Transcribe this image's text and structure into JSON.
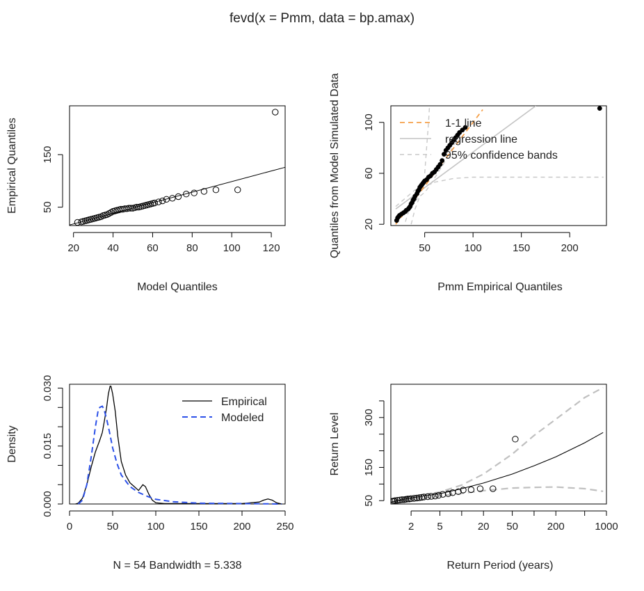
{
  "title": "fevd(x = Pmm, data = bp.amax)",
  "chart_data": [
    {
      "type": "scatter",
      "id": "qq-model",
      "xlabel": "Model Quantiles",
      "ylabel": "Empirical Quantiles",
      "xlim": [
        18,
        127
      ],
      "ylim": [
        15,
        243
      ],
      "xticks": [
        20,
        40,
        60,
        80,
        100,
        120
      ],
      "yticks": [
        50,
        150
      ],
      "points": [
        [
          22,
          21
        ],
        [
          24,
          22
        ],
        [
          25,
          23
        ],
        [
          26,
          24
        ],
        [
          27,
          25
        ],
        [
          28,
          26
        ],
        [
          29,
          27
        ],
        [
          30,
          28
        ],
        [
          31,
          29
        ],
        [
          32,
          30
        ],
        [
          33,
          31
        ],
        [
          34,
          32
        ],
        [
          35,
          34
        ],
        [
          36,
          35
        ],
        [
          37,
          36
        ],
        [
          38,
          38
        ],
        [
          39,
          40
        ],
        [
          40,
          42
        ],
        [
          41,
          43
        ],
        [
          42,
          44
        ],
        [
          43,
          45
        ],
        [
          44,
          46
        ],
        [
          45,
          46
        ],
        [
          46,
          47
        ],
        [
          47,
          47
        ],
        [
          48,
          48
        ],
        [
          49,
          48
        ],
        [
          50,
          48
        ],
        [
          51,
          49
        ],
        [
          52,
          50
        ],
        [
          53,
          50
        ],
        [
          54,
          51
        ],
        [
          55,
          52
        ],
        [
          56,
          53
        ],
        [
          57,
          54
        ],
        [
          58,
          55
        ],
        [
          59,
          56
        ],
        [
          60,
          57
        ],
        [
          61,
          58
        ],
        [
          63,
          60
        ],
        [
          65,
          62
        ],
        [
          67,
          65
        ],
        [
          70,
          67
        ],
        [
          73,
          70
        ],
        [
          77,
          75
        ],
        [
          81,
          77
        ],
        [
          86,
          80
        ],
        [
          92,
          83
        ],
        [
          103,
          83
        ],
        [
          122,
          231
        ]
      ],
      "line": {
        "x": [
          18,
          127
        ],
        "y": [
          16,
          126
        ]
      }
    },
    {
      "type": "scatter",
      "id": "qq-simulated",
      "xlabel": "Pmm Empirical Quantiles",
      "ylabel": "Quantiles from Model Simulated Data",
      "xlim": [
        15,
        238
      ],
      "ylim": [
        19,
        113
      ],
      "xticks": [
        50,
        100,
        150,
        200
      ],
      "yticks": [
        20,
        60,
        100
      ],
      "legend": {
        "position": "top-left",
        "entries": [
          "1-1 line",
          "regression line",
          "95% confidence bands"
        ]
      },
      "points": [
        [
          21,
          23
        ],
        [
          22,
          25
        ],
        [
          23,
          26
        ],
        [
          24,
          27
        ],
        [
          26,
          28
        ],
        [
          28,
          29
        ],
        [
          30,
          30
        ],
        [
          31,
          31
        ],
        [
          33,
          32
        ],
        [
          34,
          33
        ],
        [
          35,
          34
        ],
        [
          36,
          36
        ],
        [
          37,
          37
        ],
        [
          38,
          39
        ],
        [
          39,
          40
        ],
        [
          40,
          42
        ],
        [
          42,
          44
        ],
        [
          43,
          46
        ],
        [
          44,
          47
        ],
        [
          45,
          49
        ],
        [
          46,
          50
        ],
        [
          47,
          51
        ],
        [
          48,
          52
        ],
        [
          49,
          53
        ],
        [
          50,
          54
        ],
        [
          52,
          55
        ],
        [
          54,
          57
        ],
        [
          56,
          58
        ],
        [
          58,
          60
        ],
        [
          60,
          61
        ],
        [
          62,
          63
        ],
        [
          64,
          65
        ],
        [
          66,
          67
        ],
        [
          68,
          70
        ],
        [
          70,
          75
        ],
        [
          72,
          78
        ],
        [
          74,
          80
        ],
        [
          76,
          82
        ],
        [
          78,
          84
        ],
        [
          80,
          86
        ],
        [
          82,
          88
        ],
        [
          84,
          90
        ],
        [
          86,
          92
        ],
        [
          89,
          94
        ],
        [
          92,
          96
        ],
        [
          231,
          111
        ]
      ],
      "one_to_one": {
        "x": [
          20,
          110
        ],
        "y": [
          20,
          110
        ]
      },
      "regression": {
        "x": [
          20,
          165
        ],
        "y": [
          32,
          113
        ]
      },
      "conf_upper": {
        "x": [
          30,
          35,
          40,
          45,
          50,
          55,
          60,
          70,
          80,
          90
        ],
        "y": [
          22,
          34,
          38,
          42,
          45,
          50,
          56,
          68,
          82,
          95
        ]
      },
      "conf_lower": {
        "x": [
          20,
          40,
          60,
          80,
          100,
          120,
          150,
          200,
          235
        ],
        "y": [
          34,
          47,
          53,
          56,
          57,
          57,
          57,
          57,
          57
        ]
      },
      "conf_steep": {
        "x": [
          50,
          52,
          54,
          55
        ],
        "y": [
          60,
          80,
          100,
          113
        ]
      },
      "conf_left": {
        "x": [
          36,
          40,
          45
        ],
        "y": [
          20,
          32,
          42
        ]
      }
    },
    {
      "type": "line",
      "id": "density",
      "xlabel": "N = 54   Bandwidth = 5.338",
      "ylabel": "Density",
      "xlim": [
        0,
        250
      ],
      "ylim": [
        0,
        0.031
      ],
      "xticks": [
        0,
        50,
        100,
        150,
        200,
        250
      ],
      "yticks": [
        0.0,
        0.015,
        0.03
      ],
      "ytick_labels": [
        "0.000",
        "0.015",
        "0.030"
      ],
      "extra_yticks": [
        0.005,
        0.01,
        0.02,
        0.025
      ],
      "legend": {
        "position": "top-right",
        "entries": [
          "Empirical",
          "Modeled"
        ]
      },
      "series": [
        {
          "name": "Empirical",
          "color": "#000000",
          "x": [
            7,
            10,
            15,
            20,
            25,
            30,
            35,
            38,
            40,
            43,
            45,
            47,
            48,
            50,
            53,
            56,
            60,
            65,
            70,
            75,
            80,
            85,
            88,
            92,
            96,
            100,
            110,
            130,
            160,
            200,
            220,
            225,
            230,
            235,
            240,
            246
          ],
          "y": [
            0.0,
            0.0002,
            0.0015,
            0.005,
            0.0095,
            0.0135,
            0.0165,
            0.0185,
            0.021,
            0.025,
            0.0285,
            0.0305,
            0.0305,
            0.0285,
            0.024,
            0.0175,
            0.011,
            0.0075,
            0.0055,
            0.0045,
            0.0035,
            0.005,
            0.0045,
            0.0025,
            0.001,
            0.0003,
            0.0001,
            0.0001,
            0.0001,
            0.0001,
            0.0005,
            0.001,
            0.0013,
            0.001,
            0.0003,
            0.0
          ]
        },
        {
          "name": "Modeled",
          "color": "#2b50e8",
          "x": [
            10,
            15,
            20,
            25,
            30,
            33,
            35,
            38,
            40,
            43,
            46,
            50,
            55,
            60,
            70,
            80,
            90,
            100,
            120,
            150,
            200,
            246
          ],
          "y": [
            0.0,
            0.001,
            0.005,
            0.012,
            0.02,
            0.024,
            0.025,
            0.0253,
            0.0245,
            0.022,
            0.019,
            0.0145,
            0.0105,
            0.0075,
            0.0045,
            0.003,
            0.002,
            0.0012,
            0.0006,
            0.0002,
            0.0001,
            0.0
          ]
        }
      ]
    },
    {
      "type": "line",
      "id": "return-level",
      "xlabel": "Return Period (years)",
      "ylabel": "Return Level",
      "xscale": "log",
      "xlim": [
        1.05,
        1000
      ],
      "ylim": [
        40,
        400
      ],
      "xticks": [
        2,
        5,
        20,
        50,
        200,
        1000
      ],
      "extra_xticks": [
        10,
        100,
        500
      ],
      "yticks": [
        50,
        150,
        300
      ],
      "extra_yticks": [
        100,
        200,
        250,
        350
      ],
      "points": [
        [
          1.1,
          48
        ],
        [
          1.15,
          49
        ],
        [
          1.2,
          50
        ],
        [
          1.3,
          51
        ],
        [
          1.4,
          52
        ],
        [
          1.5,
          53
        ],
        [
          1.6,
          53
        ],
        [
          1.7,
          54
        ],
        [
          1.8,
          55
        ],
        [
          1.9,
          55
        ],
        [
          2.0,
          56
        ],
        [
          2.2,
          57
        ],
        [
          2.4,
          58
        ],
        [
          2.6,
          59
        ],
        [
          2.8,
          60
        ],
        [
          3.0,
          61
        ],
        [
          3.4,
          62
        ],
        [
          3.8,
          63
        ],
        [
          4.3,
          64
        ],
        [
          4.8,
          66
        ],
        [
          5.5,
          69
        ],
        [
          6.5,
          71
        ],
        [
          7.5,
          74
        ],
        [
          9,
          77
        ],
        [
          10.5,
          82
        ],
        [
          13.5,
          83
        ],
        [
          18,
          86
        ],
        [
          27,
          86
        ],
        [
          55,
          235
        ]
      ],
      "fit": {
        "x": [
          1.05,
          1.5,
          2,
          3,
          5,
          10,
          20,
          50,
          100,
          200,
          500,
          900
        ],
        "y": [
          45,
          53,
          58,
          64,
          71,
          86,
          103,
          130,
          155,
          182,
          224,
          255
        ]
      },
      "ci_upper": {
        "x": [
          1.05,
          2,
          3,
          5,
          10,
          20,
          50,
          100,
          200,
          500,
          900
        ],
        "y": [
          48,
          62,
          68,
          76,
          97,
          130,
          190,
          246,
          295,
          360,
          390
        ]
      },
      "ci_lower": {
        "x": [
          1.05,
          2,
          3,
          5,
          10,
          20,
          50,
          100,
          200,
          500,
          900
        ],
        "y": [
          42,
          54,
          58,
          64,
          72,
          80,
          88,
          90,
          91,
          86,
          78
        ]
      }
    }
  ]
}
